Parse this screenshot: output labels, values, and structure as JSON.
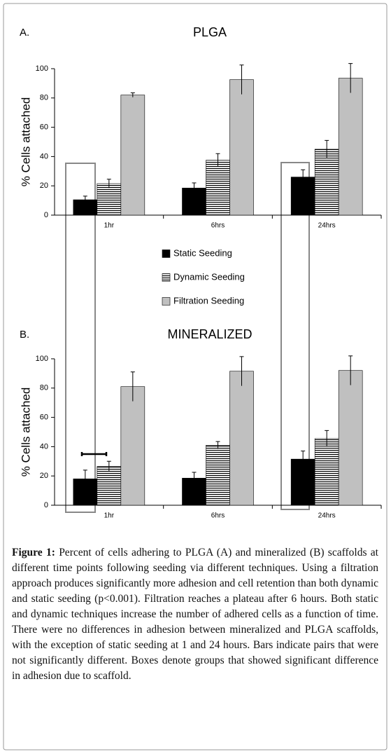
{
  "chart_data": [
    {
      "type": "bar",
      "panel": "A.",
      "title": "PLGA",
      "y_label": "% Cells attached",
      "categories": [
        "1hr",
        "6hrs",
        "24hrs"
      ],
      "series": [
        {
          "name": "Static Seeding",
          "color": "#000000",
          "values": [
            10.5,
            18.5,
            26
          ],
          "errors": [
            2.5,
            3.5,
            5
          ]
        },
        {
          "name": "Dynamic Seeding",
          "color": "#ffffff",
          "pattern": "horizontal-lines",
          "values": [
            21.5,
            37.5,
            45
          ],
          "errors": [
            3,
            4.5,
            6
          ]
        },
        {
          "name": "Filtration Seeding",
          "color": "#c0c0c0",
          "values": [
            82,
            92.5,
            93.5
          ],
          "errors": [
            1.5,
            10,
            10
          ]
        }
      ],
      "ylim": [
        0,
        100
      ],
      "yticks": [
        0,
        20,
        40,
        60,
        80,
        100
      ]
    },
    {
      "type": "bar",
      "panel": "B.",
      "title": "MINERALIZED",
      "y_label": "% Cells attached",
      "categories": [
        "1hr",
        "6hrs",
        "24hrs"
      ],
      "series": [
        {
          "color": "#000000",
          "values": [
            18,
            18.5,
            31.5
          ],
          "errors": [
            6,
            4,
            5.5
          ]
        },
        {
          "color": "#ffffff",
          "pattern": "horizontal-lines",
          "values": [
            26.5,
            41,
            45.5
          ],
          "errors": [
            3.5,
            2.5,
            5.5
          ]
        },
        {
          "color": "#c0c0c0",
          "values": [
            81,
            91.5,
            92
          ],
          "errors": [
            10,
            10,
            10
          ]
        }
      ],
      "ylim": [
        0,
        100
      ],
      "yticks": [
        0,
        20,
        40,
        60,
        80,
        100
      ]
    }
  ],
  "caption_label": "Figure 1:",
  "caption": "Percent of cells adhering to PLGA (A) and mineralized (B) scaffolds at different time points following seeding via different techniques. Using a filtration approach produces significantly more adhesion and cell retention than both dynamic and static seeding (p<0.001). Filtration reaches a plateau after 6 hours. Both static and dynamic techniques increase the number of adhered cells as a function of time. There were no differences in adhesion between mineralized and PLGA scaffolds, with the exception of static seeding at 1 and 24 hours. Bars indicate pairs that were not significantly different. Boxes denote groups that showed significant difference in adhesion due to scaffold."
}
